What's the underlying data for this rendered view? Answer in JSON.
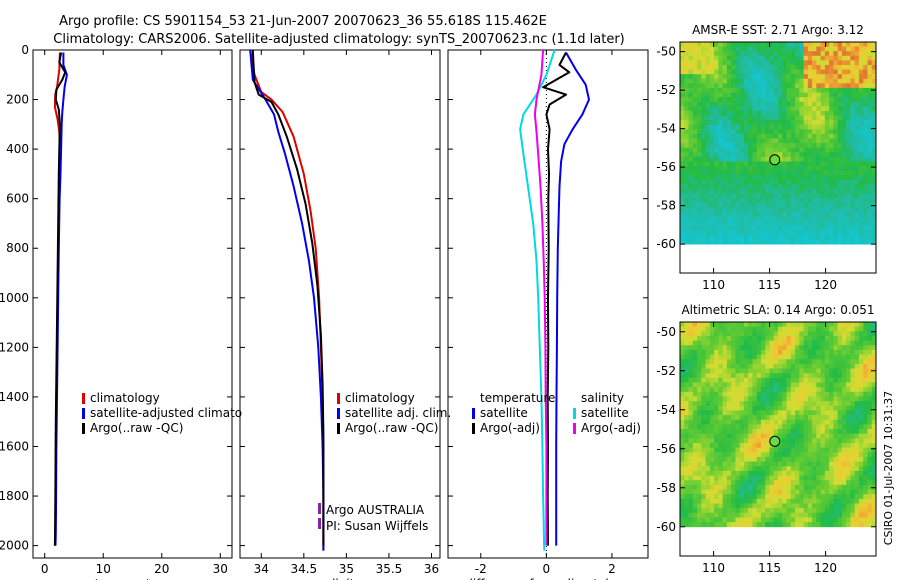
{
  "title": {
    "line1": "Argo profile: CS 5901154_53 21-Jun-2007 20070623_36 55.618S 115.462E",
    "line2": "Climatology: CARS2006. Satellite-adjusted climatology: synTS_20070623.nc (1.1d later)"
  },
  "footer_stamp": "CSIRO 01-Jul-2007 10:31:37",
  "colors": {
    "climatology": "#dd0000",
    "satellite": "#0000ee",
    "argo": "#000000",
    "sal_satellite": "#00d8e8",
    "sal_argo": "#ee00ee",
    "float_marker": "#66dd44"
  },
  "chart_data": [
    {
      "id": "temperature",
      "type": "line",
      "xlabel": "temperature",
      "ylabel": "",
      "xlim": [
        -2,
        32
      ],
      "ylim": [
        2050,
        0
      ],
      "xticks": [
        0,
        10,
        20,
        30
      ],
      "yticks": [
        0,
        200,
        400,
        600,
        800,
        1000,
        1200,
        1400,
        1600,
        1800,
        2000
      ],
      "legend": [
        "climatology",
        "satellite-adjusted climatology",
        "Argo(..raw -QC)"
      ],
      "series": [
        {
          "name": "climatology",
          "color_key": "climatology",
          "x": [
            2.6,
            2.5,
            2.1,
            1.8,
            1.75,
            2.2,
            2.5,
            2.6,
            2.55,
            2.45,
            2.3,
            2.2,
            2.1,
            2.0,
            1.9,
            1.85,
            1.8,
            1.75
          ],
          "y": [
            10,
            80,
            150,
            180,
            230,
            280,
            330,
            400,
            500,
            600,
            800,
            1000,
            1200,
            1400,
            1600,
            1800,
            1950,
            2000
          ]
        },
        {
          "name": "satellite-adjusted climatology",
          "color_key": "satellite",
          "x": [
            3.2,
            3.2,
            3.8,
            3.4,
            3.2,
            3.0,
            2.9,
            2.8,
            2.7,
            2.55,
            2.4,
            2.3,
            2.2,
            2.1,
            2.0,
            1.95,
            1.9,
            1.85
          ],
          "y": [
            10,
            60,
            100,
            150,
            200,
            250,
            300,
            400,
            500,
            600,
            800,
            1000,
            1200,
            1400,
            1600,
            1800,
            1950,
            2000
          ]
        },
        {
          "name": "Argo(..raw -QC)",
          "color_key": "argo",
          "x": [
            2.8,
            2.5,
            3.5,
            3.0,
            2.0,
            1.9,
            2.4,
            2.6,
            2.5,
            2.4,
            2.3,
            2.2,
            2.1,
            2.0,
            1.9,
            1.85,
            1.8,
            1.75
          ],
          "y": [
            10,
            50,
            90,
            120,
            160,
            200,
            240,
            300,
            400,
            500,
            700,
            900,
            1100,
            1300,
            1500,
            1700,
            1900,
            2000
          ]
        }
      ]
    },
    {
      "id": "salinity",
      "type": "line",
      "xlabel": "salinity",
      "ylabel": "",
      "xlim": [
        33.75,
        36.1
      ],
      "ylim": [
        2050,
        0
      ],
      "xticks": [
        34,
        34.5,
        35,
        35.5,
        36
      ],
      "xtick_labels": [
        "34",
        "34.5",
        "35",
        "35.5",
        "36"
      ],
      "legend": [
        "climatology",
        "satellite adj. clim.",
        "Argo(..raw -QC)"
      ],
      "annotation": [
        "Argo AUSTRALIA",
        "PI: Susan Wijffels"
      ],
      "series": [
        {
          "name": "climatology",
          "color_key": "climatology",
          "x": [
            33.87,
            33.92,
            34.0,
            34.12,
            34.25,
            34.38,
            34.5,
            34.58,
            34.64,
            34.68,
            34.7,
            34.72,
            34.73,
            34.73,
            34.73,
            34.73,
            34.73
          ],
          "y": [
            0,
            100,
            170,
            200,
            250,
            350,
            500,
            650,
            800,
            1000,
            1200,
            1400,
            1600,
            1800,
            1900,
            2000,
            2020
          ]
        },
        {
          "name": "satellite adj. clim.",
          "color_key": "satellite",
          "x": [
            33.87,
            33.9,
            34.05,
            34.15,
            34.2,
            34.28,
            34.38,
            34.48,
            34.56,
            34.62,
            34.67,
            34.7,
            34.72,
            34.73,
            34.73,
            34.73
          ],
          "y": [
            0,
            120,
            200,
            260,
            330,
            420,
            550,
            700,
            850,
            1000,
            1200,
            1400,
            1600,
            1800,
            1950,
            2020
          ]
        },
        {
          "name": "Argo(..raw -QC)",
          "color_key": "argo",
          "x": [
            33.9,
            33.92,
            33.97,
            34.12,
            34.2,
            34.3,
            34.42,
            34.52,
            34.6,
            34.66,
            34.7,
            34.72,
            34.73,
            34.73,
            34.73,
            34.73
          ],
          "y": [
            0,
            130,
            180,
            210,
            260,
            350,
            480,
            620,
            780,
            950,
            1150,
            1350,
            1550,
            1750,
            1950,
            2000
          ]
        }
      ]
    },
    {
      "id": "difference",
      "type": "line",
      "xlabel": "difference from climatology",
      "ylabel": "",
      "xlim": [
        -3,
        3.1
      ],
      "ylim": [
        2050,
        0
      ],
      "xticks": [
        -2,
        0,
        2
      ],
      "legend_groups": [
        {
          "heading": "temperature",
          "items": [
            {
              "label": "satellite",
              "color_key": "satellite"
            },
            {
              "label": "Argo(-adj)",
              "color_key": "argo"
            }
          ]
        },
        {
          "heading": "salinity",
          "items": [
            {
              "label": "satellite",
              "color_key": "sal_satellite"
            },
            {
              "label": "Argo(-adj)",
              "color_key": "sal_argo"
            }
          ]
        }
      ],
      "series": [
        {
          "name": "temperature satellite",
          "color_key": "satellite",
          "x": [
            0.6,
            0.9,
            1.2,
            1.3,
            1.1,
            0.8,
            0.55,
            0.45,
            0.4,
            0.38,
            0.35,
            0.33,
            0.32,
            0.31,
            0.3,
            0.3,
            0.3,
            0.3
          ],
          "y": [
            10,
            80,
            140,
            200,
            260,
            320,
            380,
            450,
            550,
            650,
            800,
            1000,
            1200,
            1400,
            1600,
            1800,
            1950,
            2000
          ]
        },
        {
          "name": "temperature Argo(-adj)",
          "color_key": "argo",
          "x": [
            0.6,
            0.4,
            0.7,
            -0.1,
            0.6,
            0.1,
            0.0,
            0.1,
            0.05,
            0.08,
            0.06,
            0.07,
            0.05,
            0.06,
            0.04,
            0.05,
            0.04,
            0.05
          ],
          "y": [
            10,
            60,
            90,
            150,
            180,
            220,
            260,
            320,
            400,
            500,
            600,
            800,
            1000,
            1200,
            1400,
            1600,
            1800,
            2000
          ]
        },
        {
          "name": "salinity satellite",
          "color_key": "sal_satellite",
          "x": [
            0.25,
            0.0,
            -0.3,
            -0.7,
            -0.8,
            -0.7,
            -0.55,
            -0.4,
            -0.3,
            -0.25,
            -0.2,
            -0.15,
            -0.12,
            -0.1,
            -0.08,
            -0.07,
            -0.06
          ],
          "y": [
            0,
            100,
            180,
            260,
            320,
            420,
            560,
            700,
            850,
            1000,
            1200,
            1400,
            1600,
            1800,
            1900,
            2000,
            2020
          ]
        },
        {
          "name": "salinity Argo(-adj)",
          "color_key": "sal_argo",
          "x": [
            -0.1,
            -0.15,
            -0.3,
            -0.35,
            -0.3,
            -0.25,
            -0.18,
            -0.12,
            -0.08,
            -0.05,
            -0.03,
            -0.02,
            0.0,
            0.0,
            0.0,
            0.0
          ],
          "y": [
            0,
            100,
            200,
            260,
            330,
            420,
            550,
            700,
            850,
            1000,
            1200,
            1400,
            1600,
            1800,
            1950,
            2000
          ]
        }
      ]
    },
    {
      "id": "sst_map",
      "type": "heatmap",
      "title": "AMSR-E SST: 2.71 Argo: 3.12",
      "xlim": [
        107,
        124.5
      ],
      "ylim": [
        -61.5,
        -49.5
      ],
      "xticks": [
        110,
        115,
        120
      ],
      "yticks": [
        -50,
        -52,
        -54,
        -56,
        -58,
        -60
      ],
      "data_lat_range": [
        -60,
        -49.5
      ],
      "float_position": {
        "lon": 115.462,
        "lat": -55.618
      }
    },
    {
      "id": "sla_map",
      "type": "heatmap",
      "title": "Altimetric SLA: 0.14 Argo: 0.051",
      "xlim": [
        107,
        124.5
      ],
      "ylim": [
        -61.5,
        -49.5
      ],
      "xticks": [
        110,
        115,
        120
      ],
      "yticks": [
        -50,
        -52,
        -54,
        -56,
        -58,
        -60
      ],
      "data_lat_range": [
        -60,
        -49.5
      ],
      "float_position": {
        "lon": 115.462,
        "lat": -55.618
      }
    }
  ]
}
